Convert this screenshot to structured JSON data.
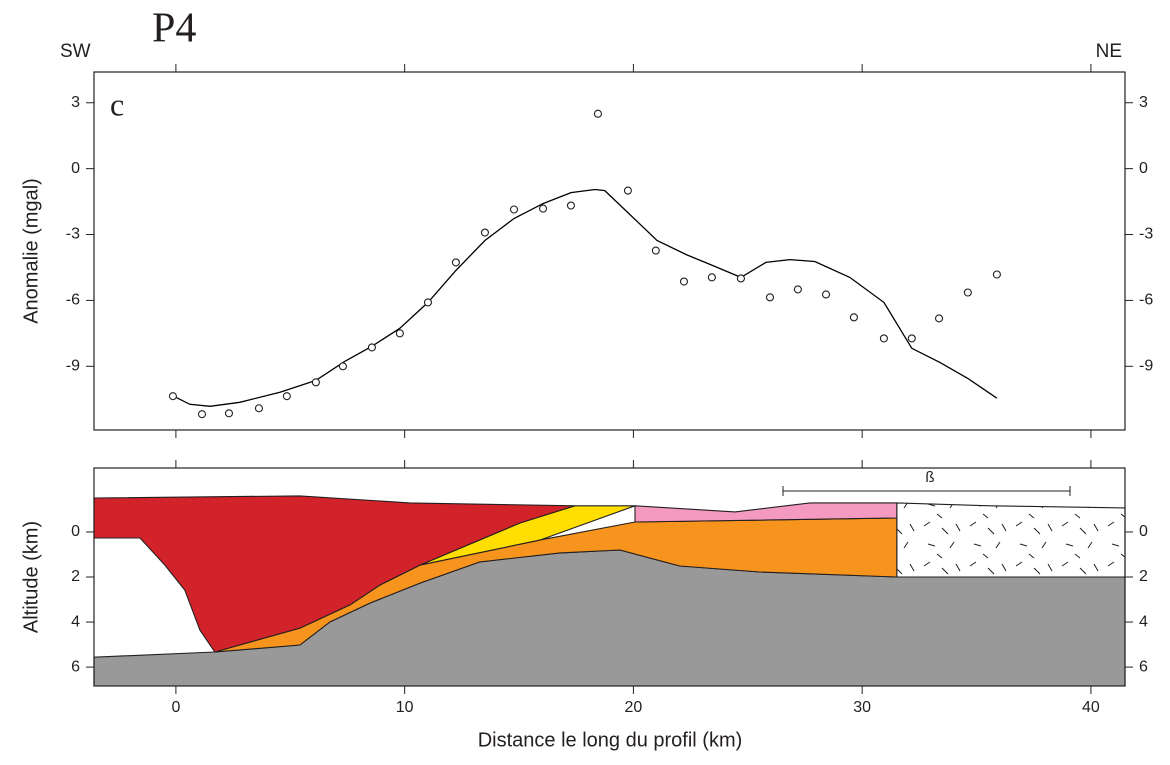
{
  "header": {
    "left": "SW",
    "profile": "P4",
    "right": "NE"
  },
  "chart_data": [
    {
      "type": "profile",
      "panel_label": "c",
      "ylabel": "Anomalie (mgal)",
      "xlim": [
        -3.58,
        41.49
      ],
      "xticks": [
        0,
        10,
        20,
        30,
        40
      ],
      "ylim": [
        -11.9,
        4.4
      ],
      "yticks": [
        -9,
        -6,
        -3,
        0,
        3
      ],
      "points": {
        "x": [
          -0.13,
          1.14,
          2.32,
          3.63,
          4.85,
          6.12,
          7.3,
          8.57,
          9.79,
          11.02,
          12.24,
          13.51,
          14.78,
          16.05,
          17.27,
          18.45,
          19.76,
          20.98,
          22.21,
          23.43,
          24.7,
          25.97,
          27.19,
          28.42,
          29.64,
          30.95,
          32.17,
          33.36,
          34.62,
          35.89
        ],
        "y": [
          -10.36,
          -11.18,
          -11.14,
          -10.91,
          -10.36,
          -9.73,
          -9.0,
          -8.14,
          -7.5,
          -6.09,
          -4.27,
          -2.91,
          -1.86,
          -1.82,
          -1.68,
          2.5,
          -1.0,
          -3.73,
          -5.14,
          -4.95,
          -5.0,
          -5.86,
          -5.5,
          -5.73,
          -6.77,
          -7.73,
          -7.73,
          -6.82,
          -5.64,
          -4.82
        ]
      },
      "curve": {
        "color": "#000000",
        "x": [
          0,
          0.61,
          1.49,
          2.8,
          4.55,
          6.12,
          7.39,
          8.57,
          9.79,
          11.02,
          12.24,
          13.51,
          14.78,
          16.05,
          17.27,
          18.32,
          18.75,
          19.76,
          21.03,
          22.3,
          23.56,
          24.7,
          25.79,
          26.84,
          27.93,
          29.46,
          30.95,
          32.17,
          33.4,
          34.62,
          35.89
        ],
        "y": [
          -10.41,
          -10.73,
          -10.82,
          -10.64,
          -10.18,
          -9.64,
          -8.77,
          -8.09,
          -7.27,
          -6.09,
          -4.64,
          -3.27,
          -2.27,
          -1.59,
          -1.09,
          -0.95,
          -1.0,
          -2.0,
          -3.27,
          -3.91,
          -4.45,
          -4.95,
          -4.27,
          -4.14,
          -4.23,
          -4.95,
          -6.09,
          -8.18,
          -8.82,
          -9.55,
          -10.45
        ]
      }
    },
    {
      "type": "section",
      "ylabel": "Altitude (km)",
      "xlabel": "Distance le long du profil (km)",
      "annotation": "ß",
      "xlim": [
        -3.58,
        41.49
      ],
      "xticks": [
        0,
        10,
        20,
        30,
        40
      ],
      "ylim": [
        6.84,
        -2.84
      ],
      "yticks": [
        0,
        2,
        4,
        6
      ],
      "layers": [
        {
          "color": "#999999",
          "x": [
            -3.58,
            1.7,
            5.42,
            6.73,
            8.48,
            10.67,
            13.29,
            16.79,
            19.41,
            22.03,
            25.53,
            31.52,
            41.49,
            41.49,
            -3.58
          ],
          "y": [
            5.56,
            5.33,
            5.02,
            4.0,
            3.16,
            2.27,
            1.33,
            0.93,
            0.8,
            1.51,
            1.78,
            2.0,
            2.0,
            6.84,
            6.84
          ]
        },
        {
          "color": "#f7941d",
          "x": [
            10.67,
            15.91,
            20.07,
            31.52,
            31.52,
            25.53,
            22.03,
            19.41,
            16.79,
            13.29,
            10.67,
            8.48,
            6.73,
            5.42,
            1.7,
            5.42,
            7.61,
            8.92
          ],
          "y": [
            1.47,
            0.36,
            -0.44,
            -0.62,
            2.0,
            1.78,
            1.51,
            0.8,
            0.93,
            1.33,
            2.27,
            3.16,
            4.0,
            5.02,
            5.33,
            4.27,
            3.24,
            2.36
          ]
        },
        {
          "color": "#ffde00",
          "x": [
            17.44,
            20.07,
            15.91,
            10.67,
            15.04
          ],
          "y": [
            -1.16,
            -1.16,
            0.36,
            1.47,
            -0.4
          ]
        },
        {
          "color": "#f49ac1",
          "x": [
            20.07,
            24.44,
            27.72,
            31.52,
            31.52,
            20.07
          ],
          "y": [
            -1.16,
            -0.89,
            -1.29,
            -1.29,
            -0.62,
            -0.44
          ]
        },
        {
          "color": "#d2232a",
          "x": [
            -3.58,
            5.42,
            10.23,
            17.44,
            15.04,
            10.67,
            8.92,
            7.61,
            5.42,
            1.7,
            1.05,
            0.39,
            -0.48,
            -1.57,
            -3.58
          ],
          "y": [
            -1.51,
            -1.6,
            -1.29,
            -1.16,
            -0.4,
            1.47,
            2.36,
            3.24,
            4.27,
            5.33,
            4.36,
            2.58,
            1.47,
            0.27,
            0.27
          ]
        },
        {
          "color": "#ffffff",
          "texture": true,
          "x": [
            31.52,
            35.58,
            41.49,
            41.49,
            31.52
          ],
          "y": [
            -1.29,
            -1.16,
            -1.07,
            2.0,
            2.0
          ]
        }
      ]
    }
  ]
}
